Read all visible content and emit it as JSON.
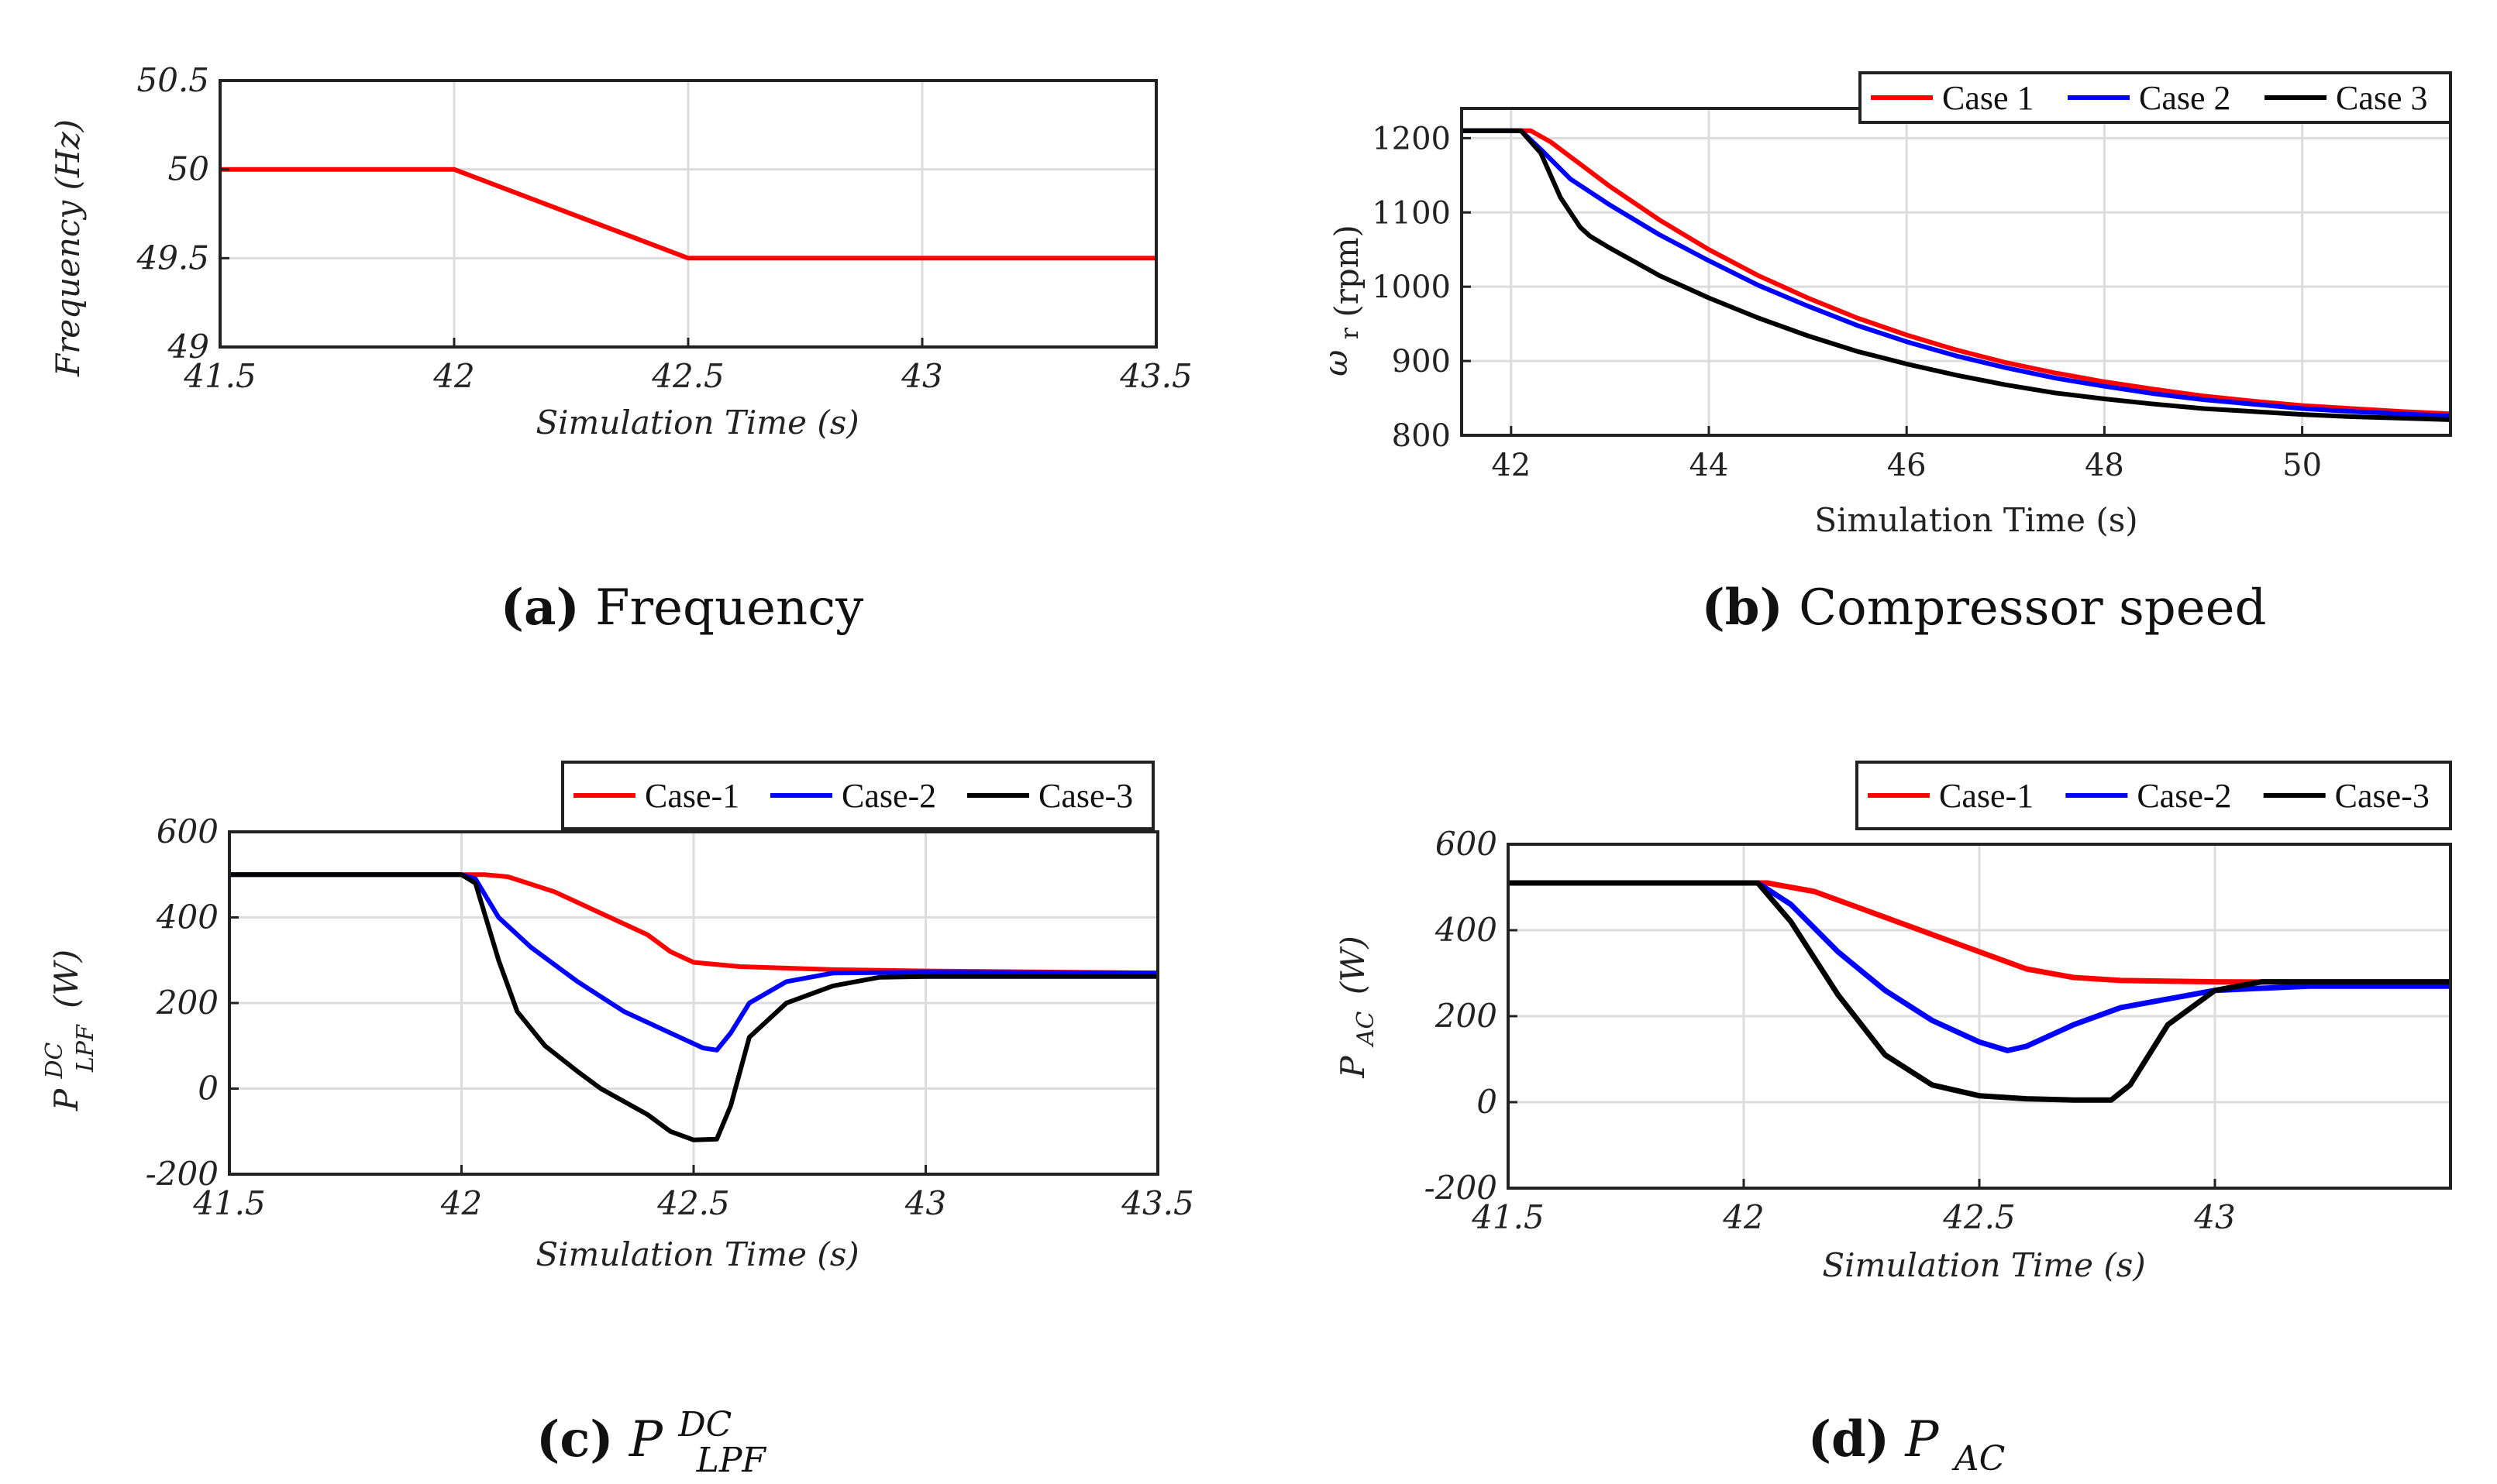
{
  "chart_data": [
    {
      "id": "a",
      "type": "line",
      "caption_label": "(a)",
      "caption_text": "Frequency",
      "xlabel": "Simulation Time (s)",
      "ylabel": "Frequency  (Hz)",
      "xlim": [
        41.5,
        43.5
      ],
      "ylim": [
        49,
        50.5
      ],
      "xticks": [
        41.5,
        42,
        42.5,
        43,
        43.5
      ],
      "xtick_labels": [
        "41.5",
        "42",
        "42.5",
        "43",
        "43.5"
      ],
      "yticks": [
        49,
        49.5,
        50,
        50.5
      ],
      "ytick_labels": [
        "49",
        "49.5",
        "50",
        "50.5"
      ],
      "grid": true,
      "series": [
        {
          "name": "Frequency",
          "color": "#ff0000",
          "x": [
            41.5,
            42,
            42.5,
            43,
            43.5
          ],
          "y": [
            50,
            50,
            49.5,
            49.5,
            49.5
          ]
        }
      ]
    },
    {
      "id": "b",
      "type": "line",
      "caption_label": "(b)",
      "caption_text": "Compressor speed",
      "xlabel": "Simulation Time (s)",
      "ylabel_main": "ω",
      "ylabel_sub": "r",
      "ylabel_unit": "(rpm)",
      "xlim": [
        41.5,
        51.5
      ],
      "ylim": [
        800,
        1240
      ],
      "xticks": [
        42,
        44,
        46,
        48,
        50
      ],
      "xtick_labels": [
        "42",
        "44",
        "46",
        "48",
        "50"
      ],
      "yticks": [
        800,
        900,
        1000,
        1100,
        1200
      ],
      "ytick_labels": [
        "800",
        "900",
        "1000",
        "1100",
        "1200"
      ],
      "grid": true,
      "legend": "top-right",
      "series": [
        {
          "name": "Case 1",
          "color": "#ff0000",
          "x": [
            41.5,
            42.2,
            42.4,
            42.7,
            43,
            43.5,
            44,
            44.5,
            45,
            45.5,
            46,
            46.5,
            47,
            47.5,
            48,
            48.5,
            49,
            49.5,
            50,
            50.5,
            51,
            51.5
          ],
          "y": [
            1210,
            1210,
            1195,
            1165,
            1135,
            1090,
            1050,
            1015,
            985,
            958,
            935,
            915,
            898,
            884,
            872,
            862,
            853,
            846,
            840,
            836,
            832,
            829
          ]
        },
        {
          "name": "Case 2",
          "color": "#0000ff",
          "x": [
            41.5,
            42.1,
            42.3,
            42.6,
            43,
            43.5,
            44,
            44.5,
            45,
            45.5,
            46,
            46.5,
            47,
            47.5,
            48,
            48.5,
            49,
            49.5,
            50,
            50.5,
            51,
            51.5
          ],
          "y": [
            1210,
            1210,
            1185,
            1145,
            1110,
            1070,
            1035,
            1002,
            974,
            948,
            926,
            907,
            891,
            877,
            866,
            856,
            848,
            842,
            836,
            832,
            829,
            826
          ]
        },
        {
          "name": "Case 3",
          "color": "#000000",
          "x": [
            41.5,
            42.1,
            42.3,
            42.5,
            42.7,
            42.8,
            43,
            43.5,
            44,
            44.5,
            45,
            45.5,
            46,
            46.5,
            47,
            47.5,
            48,
            48.5,
            49,
            49.5,
            50,
            50.5,
            51,
            51.5
          ],
          "y": [
            1210,
            1210,
            1180,
            1120,
            1080,
            1068,
            1052,
            1015,
            985,
            958,
            934,
            913,
            896,
            881,
            868,
            857,
            849,
            842,
            836,
            832,
            828,
            825,
            823,
            821
          ]
        }
      ]
    },
    {
      "id": "c",
      "type": "line",
      "caption_label": "(c)",
      "caption_main": "P",
      "caption_sup": "DC",
      "caption_sub": "LPF",
      "xlabel": "Simulation Time (s)",
      "ylabel_main": "P",
      "ylabel_sup": "DC",
      "ylabel_sub": "LPF",
      "ylabel_unit": "(W)",
      "xlim": [
        41.5,
        43.5
      ],
      "ylim": [
        -200,
        600
      ],
      "xticks": [
        41.5,
        42,
        42.5,
        43,
        43.5
      ],
      "xtick_labels": [
        "41.5",
        "42",
        "42.5",
        "43",
        "43.5"
      ],
      "yticks": [
        -200,
        0,
        200,
        400,
        600
      ],
      "ytick_labels": [
        "-200",
        "0",
        "200",
        "400",
        "600"
      ],
      "grid": true,
      "legend": "top",
      "series": [
        {
          "name": "Case-1",
          "color": "#ff0000",
          "x": [
            41.5,
            42,
            42.05,
            42.1,
            42.2,
            42.3,
            42.4,
            42.45,
            42.5,
            42.6,
            42.8,
            43,
            43.5
          ],
          "y": [
            500,
            500,
            500,
            495,
            460,
            410,
            360,
            320,
            295,
            285,
            278,
            275,
            270
          ]
        },
        {
          "name": "Case-2",
          "color": "#0000ff",
          "x": [
            41.5,
            42,
            42.03,
            42.08,
            42.15,
            42.25,
            42.35,
            42.45,
            42.52,
            42.55,
            42.58,
            42.62,
            42.7,
            42.8,
            43,
            43.5
          ],
          "y": [
            500,
            500,
            490,
            400,
            330,
            250,
            180,
            130,
            95,
            90,
            130,
            200,
            250,
            270,
            272,
            270
          ]
        },
        {
          "name": "Case-3",
          "color": "#000000",
          "x": [
            41.5,
            42,
            42.03,
            42.08,
            42.12,
            42.18,
            42.25,
            42.3,
            42.4,
            42.45,
            42.5,
            42.55,
            42.58,
            42.62,
            42.7,
            42.8,
            42.9,
            43,
            43.5
          ],
          "y": [
            500,
            500,
            480,
            300,
            180,
            100,
            40,
            0,
            -60,
            -100,
            -120,
            -118,
            -40,
            120,
            200,
            240,
            260,
            262,
            262
          ]
        }
      ]
    },
    {
      "id": "d",
      "type": "line",
      "caption_label": "(d)",
      "caption_main": "P",
      "caption_sub": "AC",
      "xlabel": "Simulation Time (s)",
      "ylabel_main": "P",
      "ylabel_sub": "AC",
      "ylabel_unit": "(W)",
      "xlim": [
        41.5,
        43.5
      ],
      "ylim": [
        -200,
        600
      ],
      "xticks": [
        41.5,
        42,
        42.5,
        43
      ],
      "xtick_labels": [
        "41.5",
        "42",
        "42.5",
        "43"
      ],
      "yticks": [
        -200,
        0,
        200,
        400,
        600
      ],
      "ytick_labels": [
        "-200",
        "0",
        "200",
        "400",
        "600"
      ],
      "grid": true,
      "legend": "top",
      "series": [
        {
          "name": "Case-1",
          "color": "#ff0000",
          "x": [
            41.5,
            42.05,
            42.15,
            42.3,
            42.5,
            42.6,
            42.7,
            42.8,
            43,
            43.5
          ],
          "y": [
            510,
            510,
            490,
            430,
            350,
            310,
            290,
            283,
            280,
            278
          ]
        },
        {
          "name": "Case-2",
          "color": "#0000ff",
          "x": [
            41.5,
            42.03,
            42.1,
            42.2,
            42.3,
            42.4,
            42.5,
            42.56,
            42.6,
            42.7,
            42.8,
            43,
            43.2,
            43.5
          ],
          "y": [
            510,
            510,
            460,
            350,
            260,
            190,
            140,
            120,
            130,
            180,
            220,
            260,
            270,
            270
          ]
        },
        {
          "name": "Case-3",
          "color": "#000000",
          "x": [
            41.5,
            42.03,
            42.1,
            42.2,
            42.3,
            42.4,
            42.5,
            42.6,
            42.7,
            42.78,
            42.82,
            42.9,
            43,
            43.1,
            43.5
          ],
          "y": [
            510,
            510,
            420,
            250,
            110,
            40,
            15,
            8,
            5,
            5,
            40,
            180,
            260,
            280,
            280
          ]
        }
      ]
    }
  ]
}
